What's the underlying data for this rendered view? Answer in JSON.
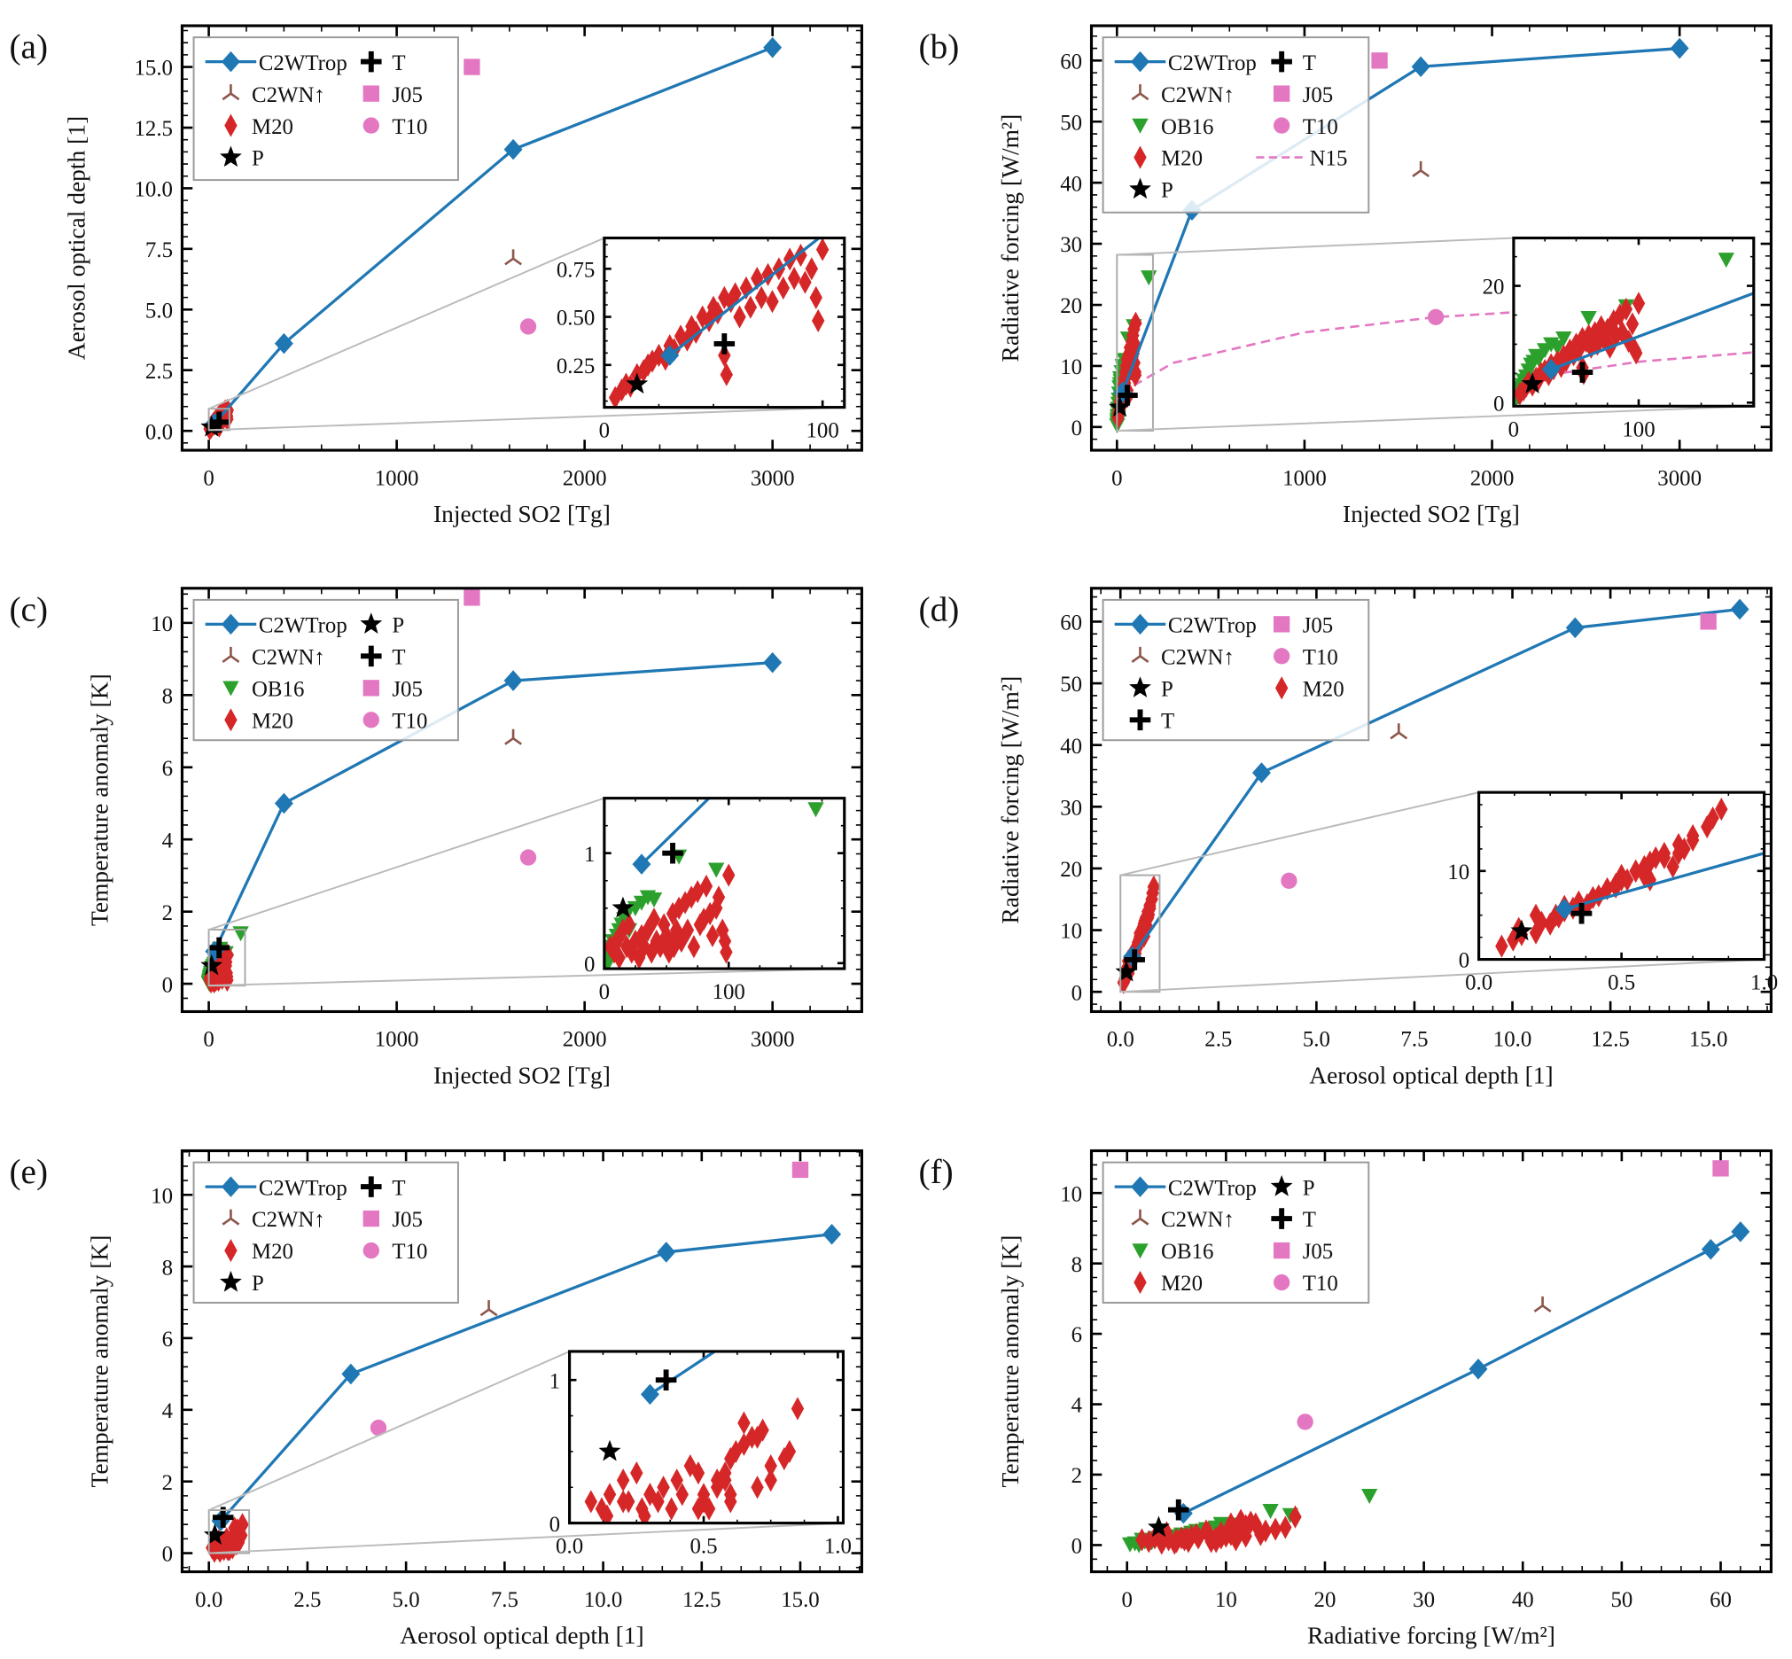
{
  "chart_data": {
    "type": "scatter",
    "datasets": {
      "c2wtrop": {
        "name": "C2WTrop",
        "color": "#1f77b4",
        "marker": "diamond",
        "line": true,
        "so2": [
          30,
          400,
          1620,
          3000
        ],
        "aod": [
          0.3,
          3.6,
          11.6,
          15.8
        ],
        "rf": [
          5.7,
          35.5,
          59,
          62
        ],
        "t": [
          0.9,
          5.0,
          8.4,
          8.9
        ]
      },
      "c2wn": {
        "name": "C2WN↑",
        "color": "#8c564b",
        "marker": "tri",
        "so2": [
          1620
        ],
        "aod": [
          7.1
        ],
        "rf": [
          42
        ],
        "t": [
          6.8
        ]
      },
      "ob16": {
        "name": "OB16",
        "color": "#2ca02c",
        "marker": "triangle-down",
        "so2": [
          1,
          2,
          3,
          4,
          5,
          6,
          7,
          8,
          10,
          12,
          14,
          16,
          18,
          20,
          25,
          30,
          35,
          40,
          60,
          90,
          170
        ],
        "rf": [
          0.3,
          0.8,
          1.2,
          1.8,
          2.5,
          1.5,
          3.0,
          3.8,
          4.5,
          5.5,
          6.5,
          7.0,
          8.0,
          7.5,
          9.0,
          10.0,
          9.5,
          11.0,
          14.5,
          16.5,
          24.5
        ],
        "t": [
          0.02,
          0.05,
          0.0,
          0.1,
          0.08,
          0.15,
          0.2,
          0.12,
          0.25,
          0.3,
          0.35,
          0.4,
          0.45,
          0.3,
          0.5,
          0.55,
          0.6,
          0.58,
          0.97,
          0.85,
          1.4
        ]
      },
      "m20": {
        "name": "M20",
        "color": "#d62728",
        "marker": "thin-diamond",
        "so2": [
          5,
          8,
          10,
          12,
          15,
          18,
          20,
          22,
          25,
          28,
          30,
          32,
          35,
          38,
          40,
          42,
          45,
          48,
          50,
          52,
          55,
          55,
          56,
          58,
          60,
          62,
          65,
          67,
          70,
          72,
          75,
          77,
          80,
          82,
          85,
          87,
          90,
          92,
          95,
          97,
          98,
          100
        ],
        "aod": [
          0.08,
          0.12,
          0.15,
          0.14,
          0.2,
          0.22,
          0.25,
          0.27,
          0.3,
          0.28,
          0.35,
          0.33,
          0.4,
          0.38,
          0.45,
          0.42,
          0.5,
          0.48,
          0.55,
          0.52,
          0.6,
          0.3,
          0.2,
          0.58,
          0.62,
          0.5,
          0.65,
          0.55,
          0.7,
          0.6,
          0.72,
          0.58,
          0.75,
          0.65,
          0.8,
          0.7,
          0.82,
          0.68,
          0.75,
          0.6,
          0.48,
          0.85
        ],
        "rf": [
          1.5,
          2.2,
          2.8,
          3.5,
          3.0,
          4.2,
          4.0,
          5.0,
          5.5,
          4.8,
          6.5,
          5.8,
          7.0,
          6.2,
          8.0,
          7.2,
          9.0,
          8.2,
          10.0,
          9.0,
          11.0,
          6.0,
          5.0,
          10.5,
          11.5,
          9.5,
          12.0,
          10.0,
          13.0,
          11.0,
          12.5,
          9.5,
          14.0,
          11.5,
          15.0,
          12.0,
          16.0,
          10.5,
          13.5,
          9.0,
          8.5,
          17.0
        ],
        "t": [
          0.15,
          0.1,
          0.2,
          0.05,
          0.3,
          0.15,
          0.35,
          0.1,
          0.2,
          0.05,
          0.25,
          0.15,
          0.3,
          0.1,
          0.4,
          0.2,
          0.15,
          0.35,
          0.25,
          0.1,
          0.45,
          0.2,
          0.15,
          0.3,
          0.5,
          0.2,
          0.55,
          0.3,
          0.6,
          0.15,
          0.65,
          0.35,
          0.4,
          0.7,
          0.45,
          0.25,
          0.5,
          0.6,
          0.3,
          0.2,
          0.1,
          0.8
        ]
      },
      "p": {
        "name": "P",
        "color": "#000000",
        "marker": "star",
        "so2": [
          15
        ],
        "aod": [
          0.15
        ],
        "rf": [
          3.2
        ],
        "t": [
          0.5
        ]
      },
      "t": {
        "name": "T",
        "color": "#000000",
        "marker": "plus",
        "so2": [
          55
        ],
        "aod": [
          0.36
        ],
        "rf": [
          5.2
        ],
        "t": [
          1.0
        ]
      },
      "j05": {
        "name": "J05",
        "color": "#e377c2",
        "marker": "square",
        "so2": [
          1400
        ],
        "aod": [
          15.0
        ],
        "rf": [
          60
        ],
        "t": [
          10.7
        ]
      },
      "t10": {
        "name": "T10",
        "color": "#e377c2",
        "marker": "circle",
        "so2": [
          1700
        ],
        "aod": [
          4.3
        ],
        "rf": [
          18
        ],
        "t": [
          3.5
        ]
      },
      "n15": {
        "name": "N15",
        "color": "#e377c2",
        "marker": "dashed-line",
        "so2": [
          5,
          10,
          30,
          100,
          300,
          1000,
          1700,
          2500,
          3400
        ],
        "rf": [
          2.7,
          3.3,
          4.8,
          7.0,
          10.5,
          15.5,
          18.0,
          19.5,
          20.8
        ]
      }
    },
    "panels": [
      {
        "label": "(a)",
        "xvar": "so2",
        "yvar": "aod",
        "xlabel": "Injected SO2 [Tg]",
        "ylabel": "Aerosol optical depth [1]",
        "xlim": [
          -142,
          3475
        ],
        "ylim": [
          -0.8,
          16.7
        ],
        "xticks": [
          0,
          1000,
          2000,
          3000
        ],
        "xtick_labels": [
          "0",
          "1000",
          "2000",
          "3000"
        ],
        "yticks": [
          0,
          2.5,
          5,
          7.5,
          10,
          12.5,
          15
        ],
        "ytick_labels": [
          "0.0",
          "2.5",
          "5.0",
          "7.5",
          "10.0",
          "12.5",
          "15.0"
        ],
        "legend": [
          [
            "c2wtrop",
            "c2wn",
            "m20",
            "p"
          ],
          [
            "t",
            "j05",
            "t10"
          ]
        ],
        "inset": {
          "xlim": [
            0,
            110
          ],
          "ylim": [
            0.03,
            0.91
          ],
          "xticks": [
            0,
            100
          ],
          "xtick_labels": [
            "0",
            "100"
          ],
          "yticks": [
            0.25,
            0.5,
            0.75
          ],
          "ytick_labels": [
            "0.25",
            "0.50",
            "0.75"
          ]
        }
      },
      {
        "label": "(b)",
        "xvar": "so2",
        "yvar": "rf",
        "xlabel": "Injected SO2 [Tg]",
        "ylabel": "Radiative forcing [W/m²]",
        "xlim": [
          -136,
          3488
        ],
        "ylim": [
          -3.8,
          65.7
        ],
        "xticks": [
          0,
          1000,
          2000,
          3000
        ],
        "xtick_labels": [
          "0",
          "1000",
          "2000",
          "3000"
        ],
        "yticks": [
          0,
          10,
          20,
          30,
          40,
          50,
          60
        ],
        "ytick_labels": [
          "0",
          "10",
          "20",
          "30",
          "40",
          "50",
          "60"
        ],
        "legend": [
          [
            "c2wtrop",
            "c2wn",
            "ob16",
            "m20",
            "p"
          ],
          [
            "t",
            "j05",
            "t10",
            "n15"
          ]
        ],
        "inset": {
          "xlim": [
            0,
            192
          ],
          "ylim": [
            -0.6,
            28.2
          ],
          "xticks": [
            0,
            100
          ],
          "xtick_labels": [
            "0",
            "100"
          ],
          "yticks": [
            0,
            20
          ],
          "ytick_labels": [
            "0",
            "20"
          ]
        }
      },
      {
        "label": "(c)",
        "xvar": "so2",
        "yvar": "t",
        "xlabel": "Injected SO2 [Tg]",
        "ylabel": "Temperature anomaly [K]",
        "xlim": [
          -142,
          3475
        ],
        "ylim": [
          -0.77,
          10.96
        ],
        "xticks": [
          0,
          1000,
          2000,
          3000
        ],
        "xtick_labels": [
          "0",
          "1000",
          "2000",
          "3000"
        ],
        "yticks": [
          0,
          2,
          4,
          6,
          8,
          10
        ],
        "ytick_labels": [
          "0",
          "2",
          "4",
          "6",
          "8",
          "10"
        ],
        "legend": [
          [
            "c2wtrop",
            "c2wn",
            "ob16",
            "m20"
          ],
          [
            "p",
            "t",
            "j05",
            "t10"
          ]
        ],
        "inset": {
          "xlim": [
            0,
            193
          ],
          "ylim": [
            -0.05,
            1.5
          ],
          "xticks": [
            0,
            100
          ],
          "xtick_labels": [
            "0",
            "100"
          ],
          "yticks": [
            0,
            1
          ],
          "ytick_labels": [
            "0",
            "1"
          ]
        }
      },
      {
        "label": "(d)",
        "xvar": "aod",
        "yvar": "rf",
        "xlabel": "Aerosol optical depth [1]",
        "ylabel": "Radiative forcing [W/m²]",
        "xlim": [
          -0.74,
          16.6
        ],
        "ylim": [
          -3.2,
          65.4
        ],
        "xticks": [
          0,
          2.5,
          5,
          7.5,
          10,
          12.5,
          15
        ],
        "xtick_labels": [
          "0.0",
          "2.5",
          "5.0",
          "7.5",
          "10.0",
          "12.5",
          "15.0"
        ],
        "yticks": [
          0,
          10,
          20,
          30,
          40,
          50,
          60
        ],
        "ytick_labels": [
          "0",
          "10",
          "20",
          "30",
          "40",
          "50",
          "60"
        ],
        "legend": [
          [
            "c2wtrop",
            "c2wn",
            "p",
            "t"
          ],
          [
            "j05",
            "t10",
            "m20"
          ]
        ],
        "inset": {
          "xlim": [
            0,
            1.0
          ],
          "ylim": [
            0,
            18.9
          ],
          "xticks": [
            0,
            0.5,
            1.0
          ],
          "xtick_labels": [
            "0.0",
            "0.5",
            "1.0"
          ],
          "yticks": [
            0,
            10
          ],
          "ytick_labels": [
            "0",
            "10"
          ]
        }
      },
      {
        "label": "(e)",
        "xvar": "aod",
        "yvar": "t",
        "xlabel": "Aerosol optical depth [1]",
        "ylabel": "Temperature anomaly [K]",
        "xlim": [
          -0.68,
          16.56
        ],
        "ylim": [
          -0.52,
          11.23
        ],
        "xticks": [
          0,
          2.5,
          5,
          7.5,
          10,
          12.5,
          15
        ],
        "xtick_labels": [
          "0.0",
          "2.5",
          "5.0",
          "7.5",
          "10.0",
          "12.5",
          "15.0"
        ],
        "yticks": [
          0,
          2,
          4,
          6,
          8,
          10
        ],
        "ytick_labels": [
          "0",
          "2",
          "4",
          "6",
          "8",
          "10"
        ],
        "legend": [
          [
            "c2wtrop",
            "c2wn",
            "m20",
            "p"
          ],
          [
            "t",
            "j05",
            "t10"
          ]
        ],
        "inset": {
          "xlim": [
            0,
            1.02
          ],
          "ylim": [
            0,
            1.2
          ],
          "xticks": [
            0,
            0.5,
            1.0
          ],
          "xtick_labels": [
            "0.0",
            "0.5",
            "1.0"
          ],
          "yticks": [
            0,
            1
          ],
          "ytick_labels": [
            "0",
            "1"
          ]
        }
      },
      {
        "label": "(f)",
        "xvar": "rf",
        "yvar": "t",
        "xlabel": "Radiative forcing [W/m²]",
        "ylabel": "Temperature anomaly [K]",
        "xlim": [
          -3.6,
          65.1
        ],
        "ylim": [
          -0.76,
          11.2
        ],
        "xticks": [
          0,
          10,
          20,
          30,
          40,
          50,
          60
        ],
        "xtick_labels": [
          "0",
          "10",
          "20",
          "30",
          "40",
          "50",
          "60"
        ],
        "yticks": [
          0,
          2,
          4,
          6,
          8,
          10
        ],
        "ytick_labels": [
          "0",
          "2",
          "4",
          "6",
          "8",
          "10"
        ],
        "legend": [
          [
            "c2wtrop",
            "c2wn",
            "ob16",
            "m20"
          ],
          [
            "p",
            "t",
            "j05",
            "t10"
          ]
        ]
      }
    ]
  }
}
